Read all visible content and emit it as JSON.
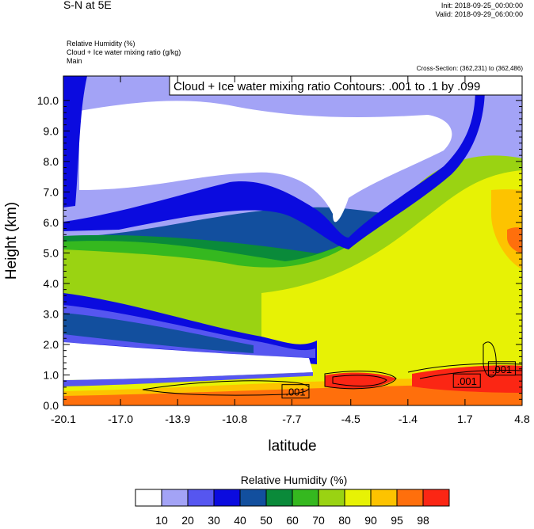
{
  "header": {
    "title": "S-N at 5E",
    "init": "Init: 2018-09-25_00:00:00",
    "valid": "Valid: 2018-09-29_06:00:00",
    "variables": [
      "Relative Humidity   (%)",
      "Cloud + Ice water mixing ratio   (g/kg)",
      "Main"
    ],
    "cross_section": "Cross-Section: (362,231) to (362,486)"
  },
  "chart_data": {
    "type": "heatmap",
    "title": "",
    "contour_label": "Cloud + Ice water mixing ratio Contours: .001 to .1 by .099",
    "xlabel": "latitude",
    "ylabel": "Height (km)",
    "xlim": [
      -20.1,
      4.8
    ],
    "ylim": [
      0,
      10.8
    ],
    "x_ticks": [
      "-20.1",
      "-17.0",
      "-13.9",
      "-10.8",
      "-7.7",
      "-4.5",
      "-1.4",
      "1.7",
      "4.8"
    ],
    "y_ticks": [
      "0.0",
      "1.0",
      "2.0",
      "3.0",
      "4.0",
      "5.0",
      "6.0",
      "7.0",
      "8.0",
      "9.0",
      "10.0"
    ],
    "contour_levels": [
      0.001,
      0.1
    ],
    "contour_value_labels": [
      {
        "text": ".001",
        "x": -7.5,
        "y": 0.45
      },
      {
        "text": ".001",
        "x": 1.8,
        "y": 0.8
      },
      {
        "text": ".001",
        "x": 3.7,
        "y": 1.2
      }
    ],
    "legend": {
      "title": "Relative Humidity  (%)",
      "labels": [
        "10",
        "20",
        "30",
        "40",
        "50",
        "60",
        "70",
        "80",
        "90",
        "95",
        "98"
      ],
      "colors": [
        "#ffffff",
        "#a3a3f6",
        "#5656f0",
        "#0b0bdf",
        "#124f9e",
        "#0a8a3a",
        "#35b81f",
        "#9ad312",
        "#e7f205",
        "#fdc300",
        "#ff6f0c",
        "#fb2614"
      ]
    },
    "grid": false
  }
}
